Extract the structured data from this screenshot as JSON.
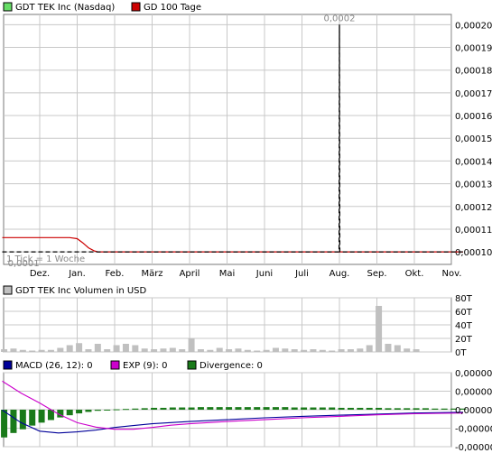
{
  "colors": {
    "grid": "#c8c8c8",
    "frame": "#7a7a7a",
    "price": "#000000",
    "ma": "#cc0000",
    "volume": "#c0c0c0",
    "macd": "#000099",
    "exp": "#cc00cc",
    "divergence": "#1a7a1a"
  },
  "chart_data": [
    {
      "type": "line",
      "legend": [
        {
          "label": "GDT TEK Inc (Nasdaq)",
          "color": "#66dd66"
        },
        {
          "label": "GD 100 Tage",
          "color": "#cc0000"
        }
      ],
      "x_ticks": [
        "Dez.",
        "Jan.",
        "Feb.",
        "März",
        "April",
        "Mai",
        "Juni",
        "Juli",
        "Aug.",
        "Sep.",
        "Okt.",
        "Nov."
      ],
      "y_ticks": [
        "0,00020",
        "0,00019",
        "0,00018",
        "0,00017",
        "0,00016",
        "0,00015",
        "0,00014",
        "0,00013",
        "0,00012",
        "0,00011",
        "0,00010"
      ],
      "ylim": [
        9.45e-05,
        0.0002045
      ],
      "note": "1 Tick = 1 Woche",
      "annotations": [
        {
          "text": "0,0002",
          "x": 8.0,
          "y": 0.0002
        },
        {
          "text": "0,0001",
          "x": -0.95,
          "y": 0.0001
        }
      ],
      "series": [
        {
          "name": "GDT TEK Inc (Nasdaq)",
          "style": "dashed",
          "x": [
            -1.0,
            7.99,
            8.0,
            8.01,
            11.3
          ],
          "y": [
            0.0001,
            0.0001,
            0.0002,
            0.0001,
            0.0001
          ]
        },
        {
          "name": "GD 100 Tage",
          "style": "solid",
          "x": [
            -1.0,
            0.8,
            1.0,
            1.15,
            1.3,
            1.45,
            1.55,
            11.3
          ],
          "y": [
            0.0001063,
            0.0001063,
            0.0001058,
            0.000104,
            0.0001018,
            0.0001005,
            0.0001,
            0.0001
          ]
        }
      ]
    },
    {
      "type": "bar",
      "legend": [
        {
          "label": "GDT TEK Inc Volumen in USD",
          "color": "#c0c0c0"
        }
      ],
      "y_ticks": [
        "80T",
        "60T",
        "40T",
        "20T",
        "0T"
      ],
      "ylim": [
        0,
        80
      ],
      "x": [
        -0.95,
        -0.7,
        -0.45,
        -0.2,
        0.05,
        0.3,
        0.55,
        0.8,
        1.05,
        1.3,
        1.55,
        1.8,
        2.05,
        2.3,
        2.55,
        2.8,
        3.05,
        3.3,
        3.55,
        3.8,
        4.05,
        4.3,
        4.55,
        4.8,
        5.05,
        5.3,
        5.55,
        5.8,
        6.05,
        6.3,
        6.55,
        6.8,
        7.05,
        7.3,
        7.55,
        7.8,
        8.05,
        8.3,
        8.55,
        8.8,
        9.05,
        9.3,
        9.55,
        9.8,
        10.05
      ],
      "values": [
        4,
        5,
        3,
        2,
        3,
        3,
        6,
        10,
        13,
        4,
        12,
        4,
        10,
        12,
        10,
        5,
        4,
        5,
        6,
        4,
        20,
        4,
        3,
        6,
        4,
        5,
        3,
        2,
        3,
        6,
        5,
        4,
        3,
        4,
        3,
        2,
        4,
        4,
        5,
        10,
        68,
        12,
        10,
        5,
        4
      ]
    },
    {
      "type": "bar",
      "legend": [
        {
          "label": "MACD (26, 12): 0",
          "color": "#000099"
        },
        {
          "label": "EXP (9): 0",
          "color": "#cc00cc"
        },
        {
          "label": "Divergence: 0",
          "color": "#1a7a1a"
        }
      ],
      "y_ticks": [
        "0,00000",
        "0,00000",
        "0,00000",
        "-0,00000",
        "-0,00000"
      ],
      "ylim": [
        -0.01,
        0.01
      ],
      "x": [
        -0.95,
        -0.7,
        -0.45,
        -0.2,
        0.05,
        0.3,
        0.55,
        0.8,
        1.05,
        1.3,
        1.55,
        1.8,
        2.05,
        2.3,
        2.55,
        2.8,
        3.05,
        3.3,
        3.55,
        3.8,
        4.05,
        4.3,
        4.55,
        4.8,
        5.05,
        5.3,
        5.55,
        5.8,
        6.05,
        6.3,
        6.55,
        6.8,
        7.05,
        7.3,
        7.55,
        7.8,
        8.05,
        8.3,
        8.55,
        8.8,
        9.05,
        9.3,
        9.55,
        9.8,
        10.05,
        10.3,
        10.55,
        10.8,
        11.05,
        11.3
      ],
      "divergence": [
        -0.0075,
        -0.0063,
        -0.0053,
        -0.0043,
        -0.0035,
        -0.0028,
        -0.0021,
        -0.0015,
        -0.001,
        -0.0006,
        -0.0003,
        -0.0001,
        0.0001,
        0.0002,
        0.0003,
        0.0004,
        0.0005,
        0.0005,
        0.0006,
        0.0006,
        0.0006,
        0.0007,
        0.0007,
        0.0007,
        0.0007,
        0.0007,
        0.0007,
        0.0007,
        0.0007,
        0.0007,
        0.0007,
        0.0006,
        0.0006,
        0.0006,
        0.0006,
        0.0006,
        0.0005,
        0.0005,
        0.0005,
        0.0005,
        0.0005,
        0.0004,
        0.0004,
        0.0004,
        0.0004,
        0.0004,
        0.0003,
        0.0003,
        0.0003,
        0.0003
      ],
      "series": [
        {
          "name": "MACD (26, 12): 0",
          "x": [
            -1.0,
            -0.5,
            0.0,
            0.5,
            1.0,
            1.5,
            2.0,
            2.5,
            3.0,
            4.0,
            5.0,
            6.0,
            7.0,
            8.0,
            9.0,
            10.0,
            11.3
          ],
          "y": [
            -0.0001,
            -0.0035,
            -0.0058,
            -0.0063,
            -0.006,
            -0.0055,
            -0.0048,
            -0.0043,
            -0.0038,
            -0.0032,
            -0.0027,
            -0.0022,
            -0.0018,
            -0.0015,
            -0.0012,
            -0.0009,
            -0.0007
          ]
        },
        {
          "name": "EXP (9): 0",
          "x": [
            -1.0,
            -0.5,
            0.0,
            0.5,
            1.0,
            1.5,
            2.0,
            2.5,
            3.0,
            3.5,
            4.0,
            5.0,
            6.0,
            7.0,
            8.0,
            9.0,
            10.0,
            11.3
          ],
          "y": [
            0.0077,
            0.0045,
            0.0018,
            -0.0012,
            -0.0035,
            -0.0047,
            -0.0053,
            -0.0053,
            -0.0048,
            -0.0042,
            -0.0038,
            -0.0032,
            -0.0027,
            -0.0022,
            -0.0018,
            -0.0014,
            -0.0011,
            -0.0009
          ]
        }
      ]
    }
  ]
}
